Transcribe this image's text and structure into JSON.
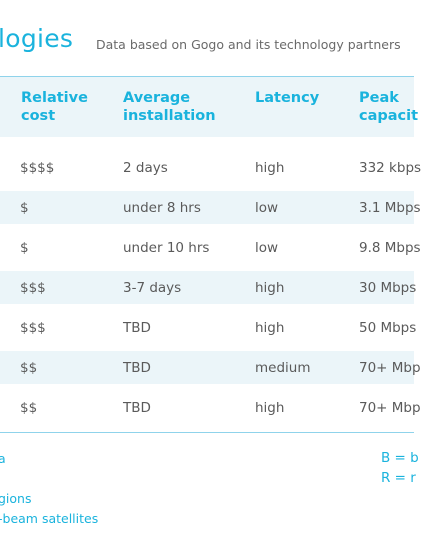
{
  "title": "logies",
  "subtitle": "Data based on Gogo and its technology partners",
  "columns": [
    "Relative\ncost",
    "Average\ninstallation",
    "Latency",
    "Peak\ncapacit"
  ],
  "rows": [
    {
      "cost": "$$$$",
      "install": "2 days",
      "latency": "high",
      "peak": "332 kbps"
    },
    {
      "cost": "$",
      "install": "under 8 hrs",
      "latency": "low",
      "peak": "3.1 Mbps"
    },
    {
      "cost": "$",
      "install": "under 10 hrs",
      "latency": "low",
      "peak": "9.8 Mbps"
    },
    {
      "cost": "$$$",
      "install": "3-7 days",
      "latency": "high",
      "peak": "30 Mbps"
    },
    {
      "cost": "$$$",
      "install": "TBD",
      "latency": "high",
      "peak": "50 Mbps"
    },
    {
      "cost": "$$",
      "install": "TBD",
      "latency": "medium",
      "peak": "70+ Mbp"
    },
    {
      "cost": "$$",
      "install": "TBD",
      "latency": "high",
      "peak": "70+ Mbp"
    }
  ],
  "footnotes": [
    "a",
    "gions",
    "-beam satellites"
  ],
  "legend": [
    "B = b",
    "R = r"
  ],
  "colors": {
    "accent": "#1ab3dd",
    "band": "#ebf5f9",
    "text": "#5a5a5a"
  }
}
